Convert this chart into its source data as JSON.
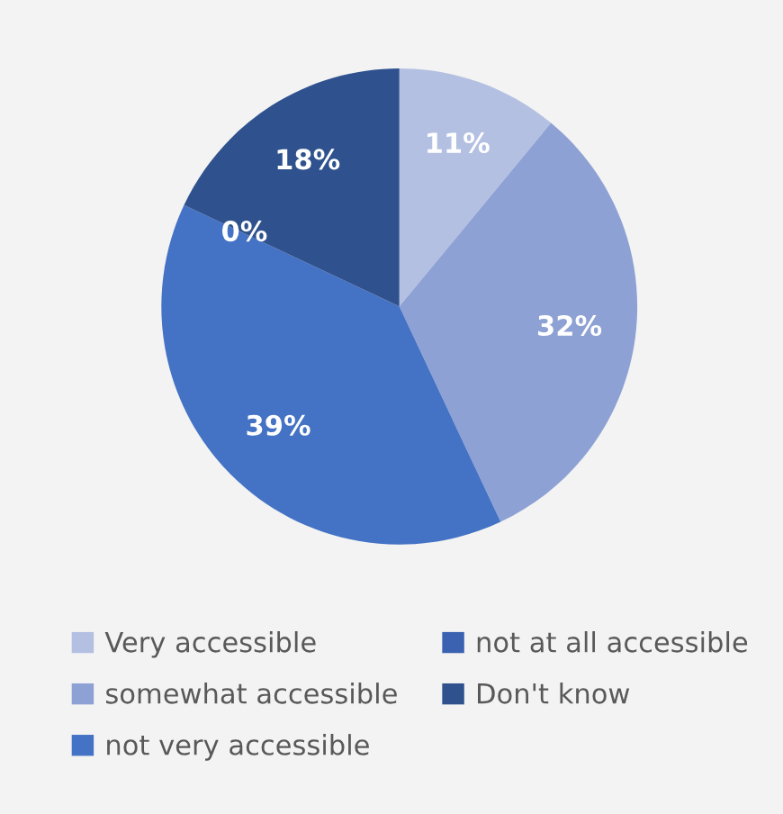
{
  "chart_data": {
    "type": "pie",
    "categories": [
      "Very accessible",
      "somewhat accessible",
      "not very accessible",
      "not at all accessible",
      "Don't know"
    ],
    "values": [
      11,
      32,
      39,
      0,
      18
    ],
    "value_labels": [
      "11%",
      "32%",
      "39%",
      "0%",
      "18%"
    ],
    "colors": [
      "#b4c0e2",
      "#8ea1d4",
      "#4472c4",
      "#3a62b0",
      "#2f528f"
    ],
    "legend": "bottom"
  }
}
